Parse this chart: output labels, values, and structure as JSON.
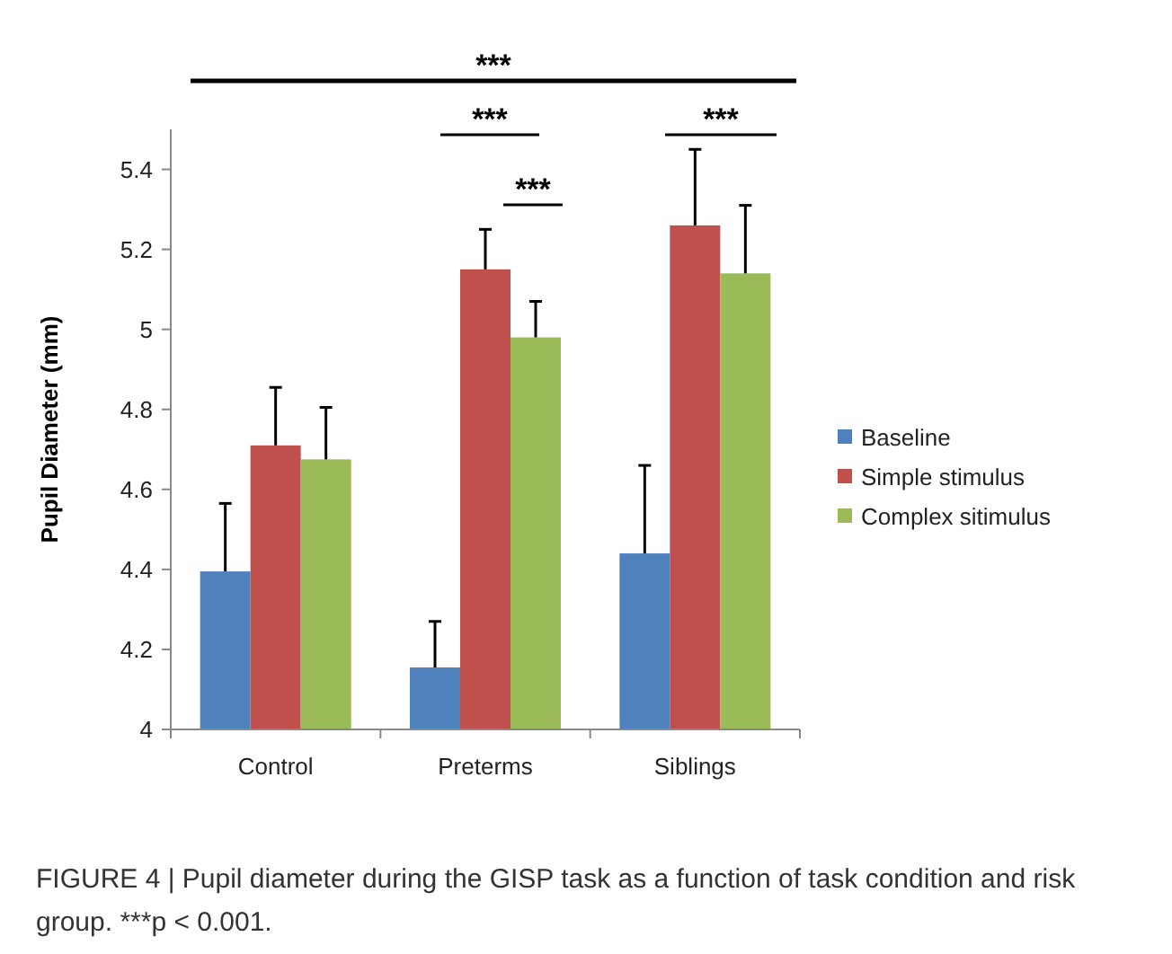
{
  "chart_data": {
    "type": "bar",
    "ylabel": "Pupil Diameter (mm)",
    "categories": [
      "Control",
      "Preterms",
      "Siblings"
    ],
    "series": [
      {
        "name": "Baseline",
        "color": "#4f81bd",
        "values": [
          4.395,
          4.155,
          4.44
        ],
        "errors": [
          [
            4.395,
            4.565
          ],
          [
            4.155,
            4.27
          ],
          [
            4.44,
            4.66
          ]
        ]
      },
      {
        "name": "Simple stimulus",
        "color": "#c0504d",
        "values": [
          4.71,
          5.15,
          5.26
        ],
        "errors": [
          [
            4.71,
            4.855
          ],
          [
            5.15,
            5.25
          ],
          [
            5.26,
            5.45
          ]
        ]
      },
      {
        "name": "Complex sitimulus",
        "color": "#9bbb59",
        "values": [
          4.675,
          4.98,
          5.14
        ],
        "errors": [
          [
            4.675,
            4.805
          ],
          [
            4.98,
            5.07
          ],
          [
            5.14,
            5.31
          ]
        ]
      }
    ],
    "ylim": [
      4,
      5.5
    ],
    "yticks": [
      4,
      4.2,
      4.4,
      4.6,
      4.8,
      5,
      5.2,
      5.4
    ],
    "grid": false,
    "legend": "right",
    "annotations": [
      "***",
      "***",
      "***",
      "***",
      "FIGURE 4 | Pupil diameter during the GISP task as a function of task condition and risk group. ***p < 0.001."
    ]
  }
}
